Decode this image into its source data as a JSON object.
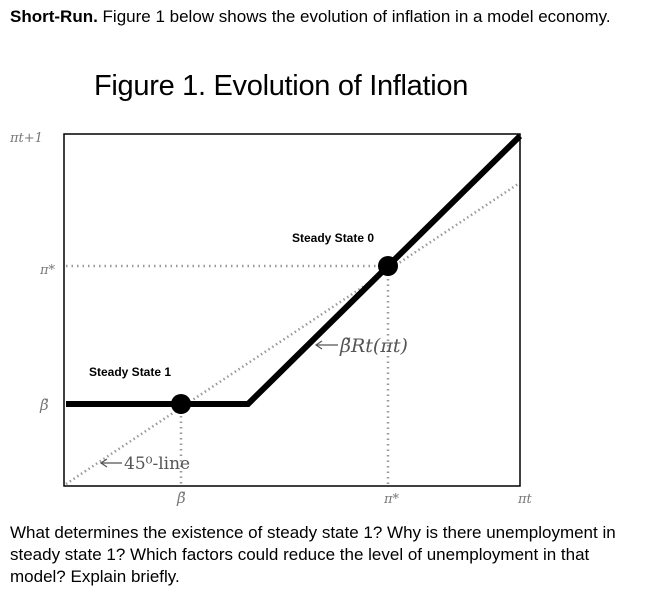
{
  "intro": {
    "bold": "Short-Run.",
    "text": " Figure 1 below shows the evolution of inflation in a model economy."
  },
  "figure": {
    "title": "Figure 1. Evolution of Inflation",
    "y_axis_label": "πt+1",
    "x_axis_label": "πt",
    "y_tick_pi_star": "π*",
    "y_tick_beta": "β̃",
    "x_tick_beta": "β̃",
    "x_tick_pi_star": "π*",
    "steady_state_0": "Steady State 0",
    "steady_state_1": "Steady State 1",
    "curve_label": "β̃Rt(πt)",
    "line_45_label": "45⁰-line"
  },
  "question": "What determines the existence of steady state 1? Why is there unemployment in steady state 1? Which factors could reduce the level of unemployment in that model? Explain briefly.",
  "colors": {
    "curve": "#000000",
    "dotted": "#9a9a9a",
    "axis": "#000000"
  }
}
